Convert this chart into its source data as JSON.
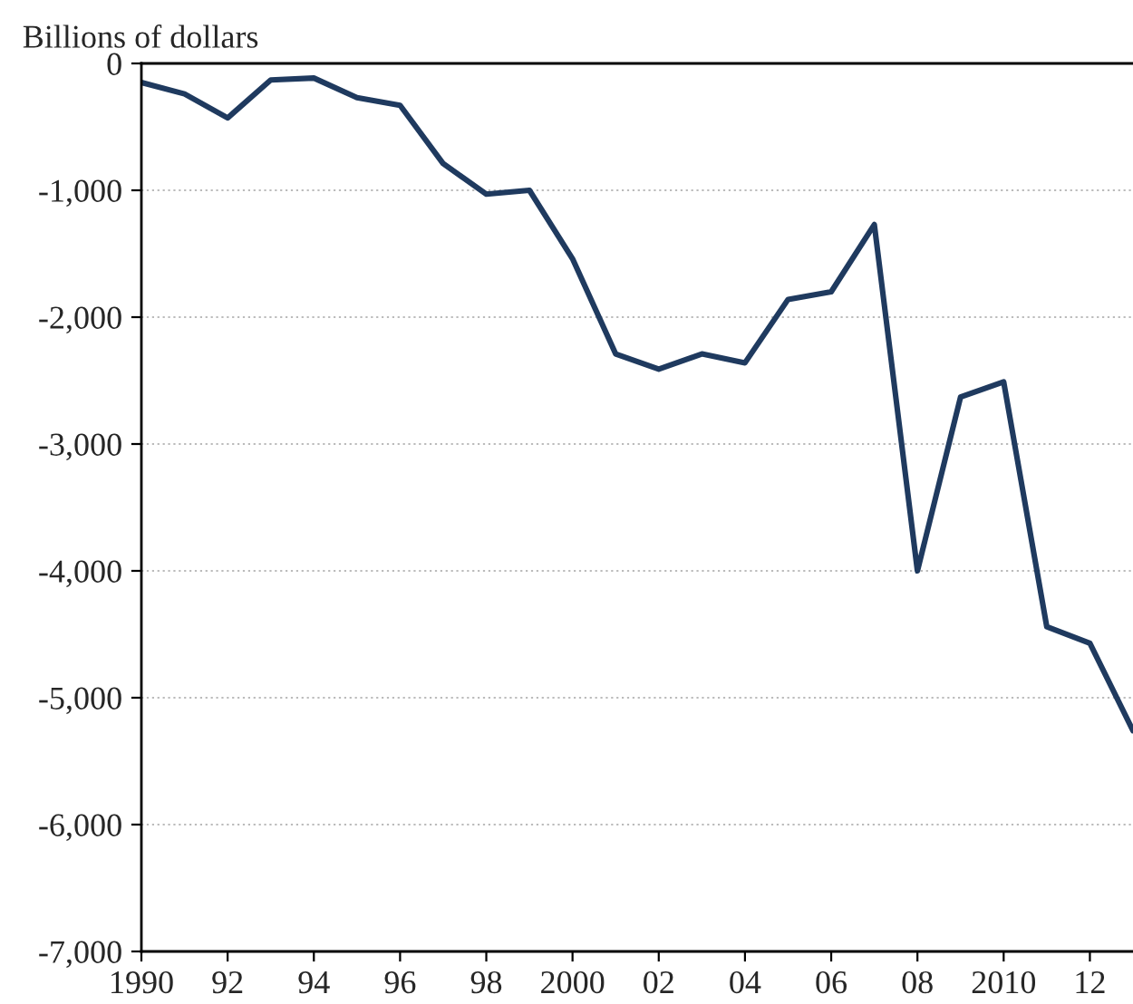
{
  "chart_data": {
    "type": "line",
    "ylabel": "Billions of dollars",
    "x": [
      1990,
      1991,
      1992,
      1993,
      1994,
      1995,
      1996,
      1997,
      1998,
      1999,
      2000,
      2001,
      2002,
      2003,
      2004,
      2005,
      2006,
      2007,
      2008,
      2009,
      2010,
      2011,
      2012,
      2013
    ],
    "series": [
      {
        "color": "#1f3a5f",
        "values": [
          -150,
          -240,
          -430,
          -130,
          -115,
          -270,
          -330,
          -790,
          -1030,
          -1000,
          -1540,
          -2290,
          -2410,
          -2290,
          -2360,
          -1860,
          -1800,
          -1270,
          -4000,
          -2630,
          -2510,
          -4440,
          -4570,
          -5260
        ]
      }
    ],
    "xlim": [
      1990,
      2013
    ],
    "xticks": [
      1990,
      {
        "value": 1992,
        "label": "92"
      },
      {
        "value": 1994,
        "label": "94"
      },
      {
        "value": 1996,
        "label": "96"
      },
      {
        "value": 1998,
        "label": "98"
      },
      2000,
      {
        "value": 2002,
        "label": "02"
      },
      {
        "value": 2004,
        "label": "04"
      },
      {
        "value": 2006,
        "label": "06"
      },
      {
        "value": 2008,
        "label": "08"
      },
      2010,
      {
        "value": 2012,
        "label": "12"
      }
    ],
    "ylim": [
      -7000,
      0
    ],
    "yticks": [
      {
        "value": -7000,
        "label": "-7,000"
      },
      {
        "value": -6000,
        "label": "-6,000"
      },
      {
        "value": -5000,
        "label": "-5,000"
      },
      {
        "value": -4000,
        "label": "-4,000"
      },
      {
        "value": -3000,
        "label": "-3,000"
      },
      {
        "value": -2000,
        "label": "-2,000"
      },
      {
        "value": -1000,
        "label": "-1,000"
      },
      0
    ],
    "grid": "y",
    "line_style": "solid",
    "marker": "none"
  }
}
